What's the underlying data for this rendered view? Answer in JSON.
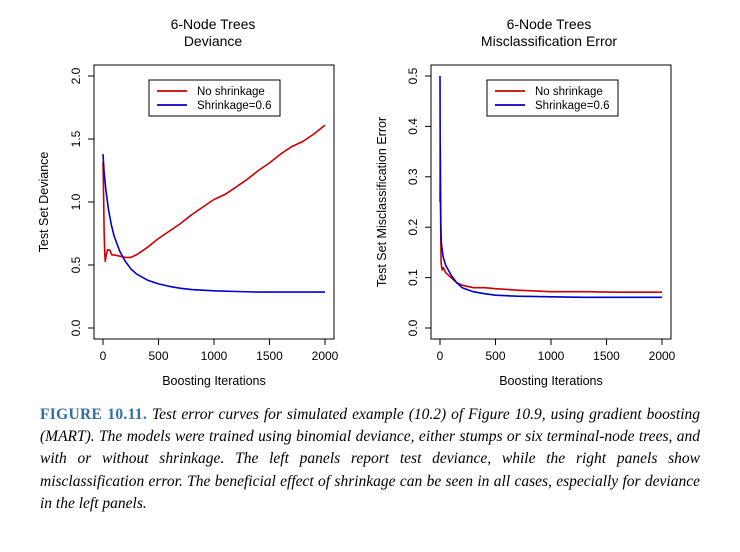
{
  "colors": {
    "no_shrinkage": "#cc0000",
    "shrinkage": "#0000cc",
    "axis": "#000000"
  },
  "chart_data": [
    {
      "type": "line",
      "title": "6-Node Trees",
      "subtitle": "Deviance",
      "xlabel": "Boosting Iterations",
      "ylabel": "Test Set Deviance",
      "xlim": [
        0,
        2000
      ],
      "ylim": [
        0,
        2.0
      ],
      "xticks": [
        0,
        500,
        1000,
        1500,
        2000
      ],
      "yticks": [
        0.0,
        0.5,
        1.0,
        1.5,
        2.0
      ],
      "ytick_labels": [
        "0.0",
        "0.5",
        "1.0",
        "1.5",
        "2.0"
      ],
      "legend_position": "top-right",
      "series": [
        {
          "name": "No shrinkage",
          "color": "#cc0000",
          "x": [
            0,
            5,
            10,
            15,
            20,
            30,
            40,
            60,
            80,
            100,
            150,
            200,
            250,
            300,
            400,
            500,
            600,
            700,
            800,
            900,
            1000,
            1100,
            1200,
            1300,
            1400,
            1500,
            1600,
            1700,
            1800,
            1900,
            2000
          ],
          "y": [
            1.32,
            1.05,
            0.78,
            0.6,
            0.53,
            0.58,
            0.62,
            0.62,
            0.58,
            0.58,
            0.57,
            0.56,
            0.56,
            0.58,
            0.64,
            0.71,
            0.77,
            0.83,
            0.9,
            0.96,
            1.02,
            1.06,
            1.12,
            1.18,
            1.25,
            1.31,
            1.38,
            1.44,
            1.48,
            1.54,
            1.61
          ]
        },
        {
          "name": "Shrinkage=0.6",
          "color": "#0000cc",
          "x": [
            0,
            10,
            25,
            50,
            75,
            100,
            150,
            200,
            250,
            300,
            400,
            500,
            600,
            700,
            800,
            1000,
            1200,
            1400,
            1600,
            1800,
            2000
          ],
          "y": [
            1.38,
            1.24,
            1.1,
            0.94,
            0.82,
            0.73,
            0.61,
            0.53,
            0.47,
            0.43,
            0.38,
            0.35,
            0.33,
            0.315,
            0.305,
            0.295,
            0.29,
            0.285,
            0.285,
            0.285,
            0.285
          ]
        }
      ]
    },
    {
      "type": "line",
      "title": "6-Node Trees",
      "subtitle": "Misclassification Error",
      "xlabel": "Boosting Iterations",
      "ylabel": "Test Set Misclassification Error",
      "xlim": [
        0,
        2000
      ],
      "ylim": [
        0,
        0.5
      ],
      "xticks": [
        0,
        500,
        1000,
        1500,
        2000
      ],
      "yticks": [
        0.0,
        0.1,
        0.2,
        0.3,
        0.4,
        0.5
      ],
      "ytick_labels": [
        "0.0",
        "0.1",
        "0.2",
        "0.3",
        "0.4",
        "0.5"
      ],
      "legend_position": "top-right",
      "series": [
        {
          "name": "No shrinkage",
          "color": "#cc0000",
          "x": [
            0,
            3,
            6,
            10,
            15,
            20,
            30,
            50,
            75,
            100,
            150,
            200,
            300,
            400,
            500,
            700,
            1000,
            1300,
            1600,
            1800,
            2000
          ],
          "y": [
            0.25,
            0.36,
            0.2,
            0.13,
            0.12,
            0.115,
            0.12,
            0.11,
            0.105,
            0.1,
            0.09,
            0.085,
            0.08,
            0.08,
            0.078,
            0.075,
            0.072,
            0.072,
            0.071,
            0.071,
            0.071
          ]
        },
        {
          "name": "Shrinkage=0.6",
          "color": "#0000cc",
          "x": [
            0,
            2,
            4,
            8,
            12,
            20,
            30,
            50,
            75,
            100,
            150,
            200,
            300,
            400,
            500,
            700,
            1000,
            1300,
            1600,
            1800,
            2000
          ],
          "y": [
            0.5,
            0.35,
            0.27,
            0.2,
            0.17,
            0.155,
            0.14,
            0.125,
            0.115,
            0.105,
            0.09,
            0.08,
            0.072,
            0.068,
            0.065,
            0.063,
            0.062,
            0.061,
            0.061,
            0.061,
            0.061
          ]
        }
      ]
    }
  ],
  "caption": {
    "label": "FIGURE 10.11.",
    "text": "Test error curves for simulated example (10.2) of Figure 10.9, using gradient boosting (MART). The models were trained using binomial deviance, either stumps or six terminal-node trees, and with or without shrinkage. The left panels report test deviance, while the right panels show misclassification error. The beneficial effect of shrinkage can be seen in all cases, especially for deviance in the left panels."
  }
}
